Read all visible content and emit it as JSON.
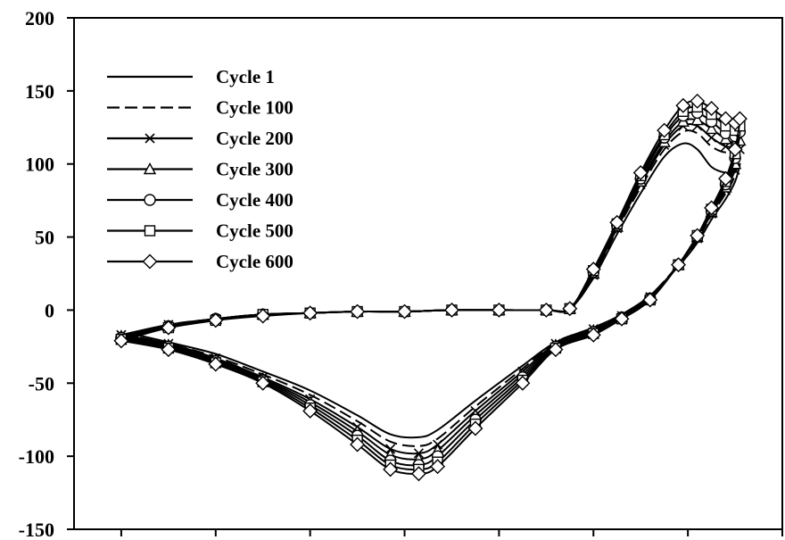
{
  "chart_data": {
    "type": "line",
    "title": "",
    "xlabel": "",
    "ylabel": "",
    "ylim": [
      -150,
      200
    ],
    "yticks": [
      "200",
      "150",
      "100",
      "50",
      "0",
      "-50",
      "-100",
      "-150"
    ],
    "grid": false,
    "legend_position": "top-left",
    "series": [
      {
        "name": "Cycle   1",
        "marker": "none",
        "dash": "solid",
        "points": [
          [
            -5.8,
            -16
          ],
          [
            -5.0,
            -10
          ],
          [
            -4.0,
            -6
          ],
          [
            -3.0,
            -3
          ],
          [
            -2.0,
            -2
          ],
          [
            -1.0,
            -1
          ],
          [
            0.0,
            -1
          ],
          [
            1.0,
            0
          ],
          [
            2.0,
            0
          ],
          [
            3.0,
            0
          ],
          [
            3.5,
            1
          ],
          [
            4.0,
            22
          ],
          [
            4.5,
            52
          ],
          [
            5.0,
            80
          ],
          [
            5.5,
            105
          ],
          [
            5.9,
            114
          ],
          [
            6.2,
            110
          ],
          [
            6.5,
            98
          ],
          [
            6.8,
            94
          ],
          [
            7.0,
            95
          ],
          [
            7.1,
            100
          ],
          [
            7.0,
            88
          ],
          [
            6.8,
            76
          ],
          [
            6.5,
            62
          ],
          [
            6.2,
            46
          ],
          [
            5.8,
            30
          ],
          [
            5.2,
            10
          ],
          [
            4.6,
            -3
          ],
          [
            4.0,
            -12
          ],
          [
            3.2,
            -22
          ],
          [
            2.5,
            -38
          ],
          [
            1.5,
            -62
          ],
          [
            0.7,
            -82
          ],
          [
            0.3,
            -87
          ],
          [
            -0.3,
            -85
          ],
          [
            -1.0,
            -72
          ],
          [
            -2.0,
            -55
          ],
          [
            -3.0,
            -42
          ],
          [
            -4.0,
            -30
          ],
          [
            -5.0,
            -22
          ],
          [
            -5.8,
            -16
          ]
        ]
      },
      {
        "name": "Cycle 100",
        "marker": "none",
        "dash": "dashed",
        "points": [
          [
            -5.9,
            -17
          ],
          [
            -5.0,
            -10
          ],
          [
            -4.0,
            -6
          ],
          [
            -3.0,
            -3
          ],
          [
            -2.0,
            -2
          ],
          [
            -1.0,
            -1
          ],
          [
            0.0,
            -1
          ],
          [
            1.0,
            0
          ],
          [
            2.0,
            0
          ],
          [
            3.0,
            0
          ],
          [
            3.5,
            1
          ],
          [
            4.0,
            23
          ],
          [
            4.5,
            55
          ],
          [
            5.0,
            84
          ],
          [
            5.5,
            110
          ],
          [
            5.9,
            122
          ],
          [
            6.2,
            121
          ],
          [
            6.5,
            112
          ],
          [
            6.8,
            108
          ],
          [
            7.0,
            112
          ],
          [
            7.1,
            116
          ],
          [
            7.0,
            93
          ],
          [
            6.8,
            80
          ],
          [
            6.5,
            65
          ],
          [
            6.2,
            48
          ],
          [
            5.8,
            31
          ],
          [
            5.2,
            10
          ],
          [
            4.6,
            -3
          ],
          [
            4.0,
            -12
          ],
          [
            3.2,
            -22
          ],
          [
            2.5,
            -40
          ],
          [
            1.5,
            -66
          ],
          [
            0.7,
            -88
          ],
          [
            0.3,
            -93
          ],
          [
            -0.3,
            -90
          ],
          [
            -1.0,
            -76
          ],
          [
            -2.0,
            -58
          ],
          [
            -3.0,
            -44
          ],
          [
            -4.0,
            -32
          ],
          [
            -5.0,
            -23
          ],
          [
            -5.9,
            -17
          ]
        ]
      },
      {
        "name": "Cycle 200",
        "marker": "x",
        "dash": "solid",
        "points": [
          [
            -6.0,
            -17
          ],
          [
            -5.0,
            -10
          ],
          [
            -4.0,
            -6
          ],
          [
            -3.0,
            -3
          ],
          [
            -2.0,
            -2
          ],
          [
            -1.0,
            -1
          ],
          [
            0.0,
            -1
          ],
          [
            1.0,
            0
          ],
          [
            2.0,
            0
          ],
          [
            3.0,
            0
          ],
          [
            3.5,
            1
          ],
          [
            4.0,
            24
          ],
          [
            4.5,
            56
          ],
          [
            5.0,
            86
          ],
          [
            5.5,
            113
          ],
          [
            5.9,
            126
          ],
          [
            6.2,
            126
          ],
          [
            6.5,
            118
          ],
          [
            6.8,
            112
          ],
          [
            7.0,
            112
          ],
          [
            7.1,
            110
          ],
          [
            7.0,
            96
          ],
          [
            6.8,
            82
          ],
          [
            6.5,
            66
          ],
          [
            6.2,
            49
          ],
          [
            5.8,
            31
          ],
          [
            5.2,
            9
          ],
          [
            4.6,
            -4
          ],
          [
            4.0,
            -13
          ],
          [
            3.2,
            -23
          ],
          [
            2.5,
            -42
          ],
          [
            1.5,
            -69
          ],
          [
            0.7,
            -92
          ],
          [
            0.3,
            -98
          ],
          [
            -0.3,
            -95
          ],
          [
            -1.0,
            -80
          ],
          [
            -2.0,
            -61
          ],
          [
            -3.0,
            -46
          ],
          [
            -4.0,
            -33
          ],
          [
            -5.0,
            -23
          ],
          [
            -6.0,
            -17
          ]
        ]
      },
      {
        "name": "Cycle 300",
        "marker": "triangle",
        "dash": "solid",
        "points": [
          [
            -6.0,
            -18
          ],
          [
            -5.0,
            -11
          ],
          [
            -4.0,
            -6
          ],
          [
            -3.0,
            -3
          ],
          [
            -2.0,
            -2
          ],
          [
            -1.0,
            -1
          ],
          [
            0.0,
            -1
          ],
          [
            1.0,
            0
          ],
          [
            2.0,
            0
          ],
          [
            3.0,
            0
          ],
          [
            3.5,
            1
          ],
          [
            4.0,
            25
          ],
          [
            4.5,
            57
          ],
          [
            5.0,
            88
          ],
          [
            5.5,
            115
          ],
          [
            5.9,
            129
          ],
          [
            6.2,
            130
          ],
          [
            6.5,
            124
          ],
          [
            6.8,
            117
          ],
          [
            7.0,
            114
          ],
          [
            7.1,
            116
          ],
          [
            7.0,
            100
          ],
          [
            6.8,
            84
          ],
          [
            6.5,
            67
          ],
          [
            6.2,
            50
          ],
          [
            5.8,
            31
          ],
          [
            5.2,
            8
          ],
          [
            4.6,
            -5
          ],
          [
            4.0,
            -14
          ],
          [
            3.2,
            -24
          ],
          [
            2.5,
            -44
          ],
          [
            1.5,
            -72
          ],
          [
            0.7,
            -96
          ],
          [
            0.3,
            -102
          ],
          [
            -0.3,
            -99
          ],
          [
            -1.0,
            -83
          ],
          [
            -2.0,
            -63
          ],
          [
            -3.0,
            -47
          ],
          [
            -4.0,
            -34
          ],
          [
            -5.0,
            -24
          ],
          [
            -6.0,
            -18
          ]
        ]
      },
      {
        "name": "Cycle 400",
        "marker": "circle",
        "dash": "solid",
        "points": [
          [
            -6.0,
            -19
          ],
          [
            -5.0,
            -11
          ],
          [
            -4.0,
            -6
          ],
          [
            -3.0,
            -3
          ],
          [
            -2.0,
            -2
          ],
          [
            -1.0,
            -1
          ],
          [
            0.0,
            -1
          ],
          [
            1.0,
            0
          ],
          [
            2.0,
            0
          ],
          [
            3.0,
            0
          ],
          [
            3.5,
            1
          ],
          [
            4.0,
            26
          ],
          [
            4.5,
            58
          ],
          [
            5.0,
            90
          ],
          [
            5.5,
            118
          ],
          [
            5.9,
            133
          ],
          [
            6.2,
            135
          ],
          [
            6.5,
            129
          ],
          [
            6.8,
            121
          ],
          [
            7.0,
            119
          ],
          [
            7.1,
            122
          ],
          [
            7.0,
            104
          ],
          [
            6.8,
            86
          ],
          [
            6.5,
            68
          ],
          [
            6.2,
            50
          ],
          [
            5.8,
            31
          ],
          [
            5.2,
            8
          ],
          [
            4.6,
            -5
          ],
          [
            4.0,
            -15
          ],
          [
            3.2,
            -25
          ],
          [
            2.5,
            -46
          ],
          [
            1.5,
            -75
          ],
          [
            0.7,
            -100
          ],
          [
            0.3,
            -106
          ],
          [
            -0.3,
            -103
          ],
          [
            -1.0,
            -86
          ],
          [
            -2.0,
            -65
          ],
          [
            -3.0,
            -48
          ],
          [
            -4.0,
            -35
          ],
          [
            -5.0,
            -25
          ],
          [
            -6.0,
            -19
          ]
        ]
      },
      {
        "name": "Cycle 500",
        "marker": "square",
        "dash": "solid",
        "points": [
          [
            -6.0,
            -20
          ],
          [
            -5.0,
            -12
          ],
          [
            -4.0,
            -7
          ],
          [
            -3.0,
            -3
          ],
          [
            -2.0,
            -2
          ],
          [
            -1.0,
            -1
          ],
          [
            0.0,
            -1
          ],
          [
            1.0,
            0
          ],
          [
            2.0,
            0
          ],
          [
            3.0,
            0
          ],
          [
            3.5,
            1
          ],
          [
            4.0,
            27
          ],
          [
            4.5,
            59
          ],
          [
            5.0,
            92
          ],
          [
            5.5,
            120
          ],
          [
            5.9,
            136
          ],
          [
            6.2,
            139
          ],
          [
            6.5,
            134
          ],
          [
            6.8,
            126
          ],
          [
            7.0,
            123
          ],
          [
            7.1,
            126
          ],
          [
            7.0,
            107
          ],
          [
            6.8,
            88
          ],
          [
            6.5,
            69
          ],
          [
            6.2,
            51
          ],
          [
            5.8,
            31
          ],
          [
            5.2,
            7
          ],
          [
            4.6,
            -6
          ],
          [
            4.0,
            -16
          ],
          [
            3.2,
            -26
          ],
          [
            2.5,
            -48
          ],
          [
            1.5,
            -78
          ],
          [
            0.7,
            -104
          ],
          [
            0.3,
            -109
          ],
          [
            -0.3,
            -106
          ],
          [
            -1.0,
            -89
          ],
          [
            -2.0,
            -67
          ],
          [
            -3.0,
            -49
          ],
          [
            -4.0,
            -36
          ],
          [
            -5.0,
            -26
          ],
          [
            -6.0,
            -20
          ]
        ]
      },
      {
        "name": "Cycle 600",
        "marker": "diamond",
        "dash": "solid",
        "points": [
          [
            -6.0,
            -21
          ],
          [
            -5.0,
            -12
          ],
          [
            -4.0,
            -7
          ],
          [
            -3.0,
            -4
          ],
          [
            -2.0,
            -2
          ],
          [
            -1.0,
            -1
          ],
          [
            0.0,
            -1
          ],
          [
            1.0,
            0
          ],
          [
            2.0,
            0
          ],
          [
            3.0,
            0
          ],
          [
            3.5,
            1
          ],
          [
            4.0,
            28
          ],
          [
            4.5,
            60
          ],
          [
            5.0,
            94
          ],
          [
            5.5,
            123
          ],
          [
            5.9,
            140
          ],
          [
            6.2,
            143
          ],
          [
            6.5,
            138
          ],
          [
            6.8,
            131
          ],
          [
            7.0,
            128
          ],
          [
            7.1,
            131
          ],
          [
            7.0,
            110
          ],
          [
            6.8,
            90
          ],
          [
            6.5,
            70
          ],
          [
            6.2,
            51
          ],
          [
            5.8,
            31
          ],
          [
            5.2,
            7
          ],
          [
            4.6,
            -6
          ],
          [
            4.0,
            -17
          ],
          [
            3.2,
            -27
          ],
          [
            2.5,
            -50
          ],
          [
            1.5,
            -81
          ],
          [
            0.7,
            -107
          ],
          [
            0.3,
            -112
          ],
          [
            -0.3,
            -109
          ],
          [
            -1.0,
            -92
          ],
          [
            -2.0,
            -69
          ],
          [
            -3.0,
            -50
          ],
          [
            -4.0,
            -37
          ],
          [
            -5.0,
            -27
          ],
          [
            -6.0,
            -21
          ]
        ]
      }
    ]
  }
}
